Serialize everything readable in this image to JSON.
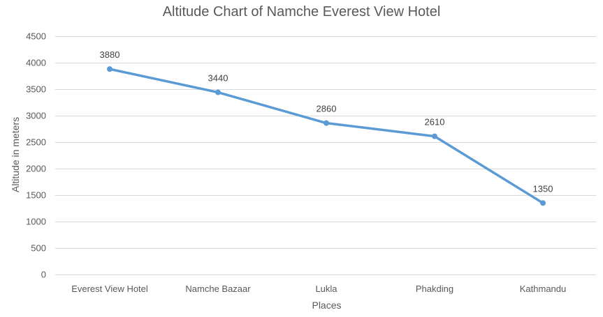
{
  "chart_data": {
    "type": "line",
    "title": "Altitude Chart of Namche Everest View Hotel",
    "xlabel": "Places",
    "ylabel": "Altitude in meters",
    "categories": [
      "Everest View Hotel",
      "Namche Bazaar",
      "Lukla",
      "Phakding",
      "Kathmandu"
    ],
    "series": [
      {
        "values": [
          3880,
          3440,
          2860,
          2610,
          1350
        ],
        "data_labels": [
          "3880",
          "3440",
          "2860",
          "2610",
          "1350"
        ]
      }
    ],
    "ylim": [
      0,
      4500
    ],
    "yticks": [
      0,
      500,
      1000,
      1500,
      2000,
      2500,
      3000,
      3500,
      4000,
      4500
    ],
    "ytick_labels": [
      "0",
      "500",
      "1000",
      "1500",
      "2000",
      "2500",
      "3000",
      "3500",
      "4000",
      "4500"
    ],
    "grid": true,
    "legend": "none",
    "colors": {
      "line": "#5b9bd5",
      "grid": "#d9d9d9",
      "text": "#595959"
    }
  }
}
